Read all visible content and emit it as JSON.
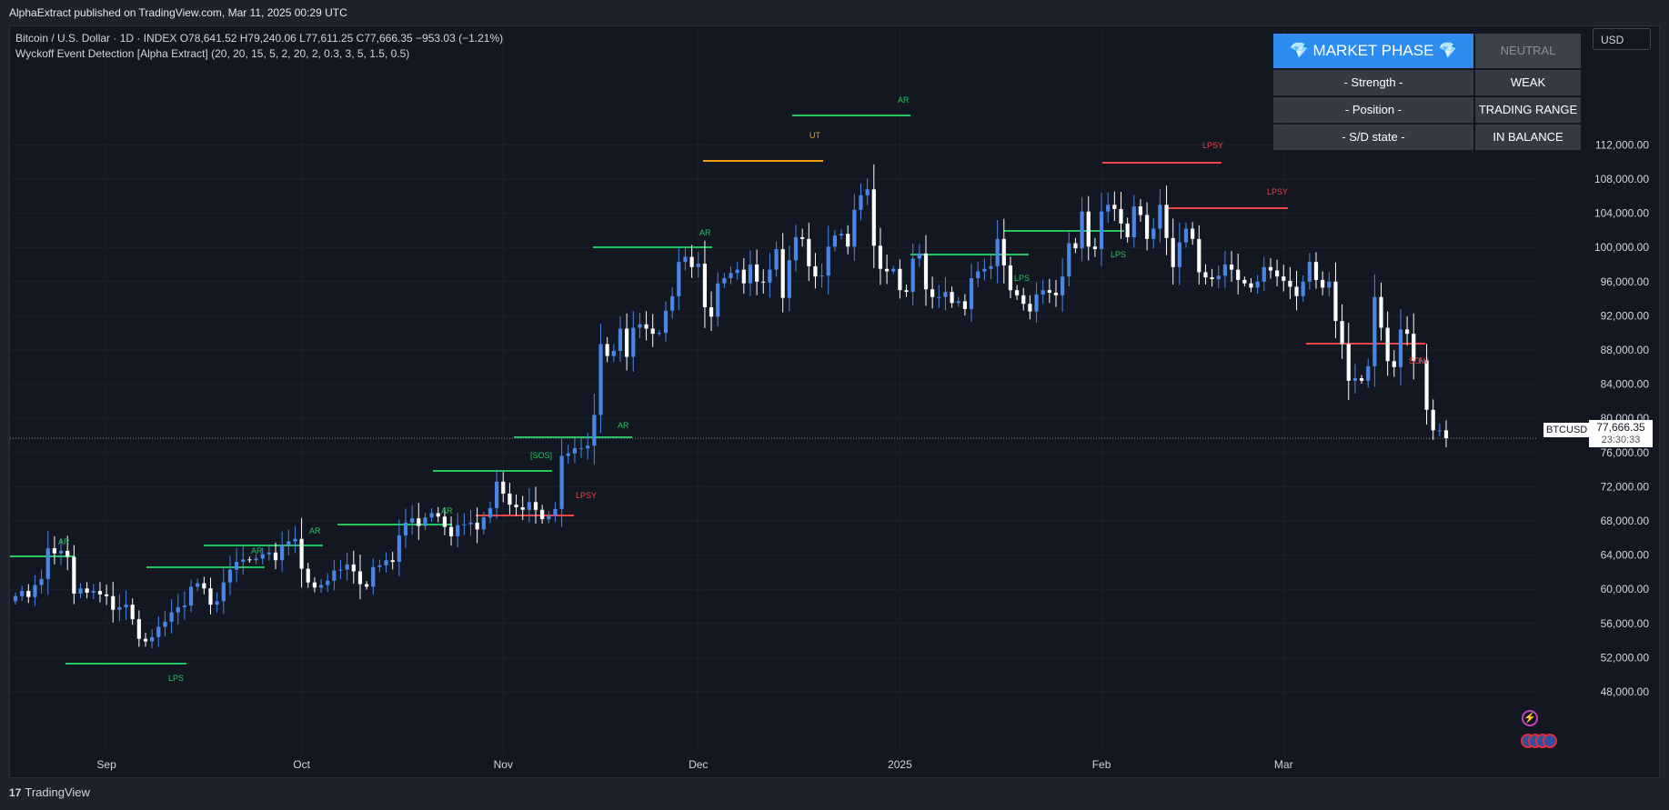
{
  "header": {
    "published": "AlphaExtract published on TradingView.com, Mar 11, 2025 00:29 UTC"
  },
  "legend": {
    "line1": "Bitcoin / U.S. Dollar · 1D · INDEX  O78,641.52  H79,240.06  L77,611.25  C77,666.35  −953.03 (−1.21%)",
    "line2": "Wyckoff Event Detection [Alpha Extract] (20, 20, 15, 5, 2, 20, 2, 0.3, 3, 5, 1.5, 0.5)"
  },
  "currency": "USD",
  "market_phase": {
    "title": "💎 MARKET PHASE 💎",
    "phase": "NEUTRAL",
    "rows": [
      {
        "label": "- Strength -",
        "value": "WEAK"
      },
      {
        "label": "- Position -",
        "value": "TRADING RANGE"
      },
      {
        "label": "- S/D state -",
        "value": "IN BALANCE"
      }
    ]
  },
  "price_label": {
    "symbol": "BTCUSD",
    "price": "77,666.35",
    "countdown": "23:30:33"
  },
  "brand": {
    "logo": "17",
    "name": "TradingView"
  },
  "colors": {
    "up": "#4a86e8",
    "down": "#ffffff",
    "green": "#22c55e",
    "red": "#ef4444",
    "orange": "#f59e0b",
    "panel_head": "#2d8cf0"
  },
  "chart_data": {
    "type": "candlestick",
    "title": "Bitcoin / U.S. Dollar · 1D · INDEX",
    "xlabel": "",
    "ylabel": "USD",
    "ylim": [
      45000,
      115000
    ],
    "y_ticks": [
      48000,
      52000,
      56000,
      60000,
      64000,
      68000,
      72000,
      76000,
      80000,
      84000,
      88000,
      92000,
      96000,
      100000,
      104000,
      108000,
      112000
    ],
    "y_tick_labels": [
      "48,000.00",
      "52,000.00",
      "56,000.00",
      "60,000.00",
      "64,000.00",
      "68,000.00",
      "72,000.00",
      "76,000.00",
      "80,000.00",
      "84,000.00",
      "88,000.00",
      "92,000.00",
      "96,000.00",
      "100,000.00",
      "104,000.00",
      "108,000.00",
      "112,000.00"
    ],
    "x_labels": [
      {
        "text": "Sep",
        "day": 14
      },
      {
        "text": "Oct",
        "day": 44
      },
      {
        "text": "Nov",
        "day": 75
      },
      {
        "text": "Dec",
        "day": 105
      },
      {
        "text": "2025",
        "day": 136
      },
      {
        "text": "Feb",
        "day": 167
      },
      {
        "text": "Mar",
        "day": 195
      }
    ],
    "last_price": 77666.35,
    "closes": [
      59200,
      59800,
      59100,
      60500,
      61200,
      64800,
      64200,
      64500,
      63800,
      59500,
      60100,
      59600,
      59800,
      59400,
      59200,
      57600,
      57900,
      58200,
      56500,
      54200,
      53900,
      54400,
      55600,
      56200,
      57300,
      57900,
      58100,
      60300,
      60700,
      60100,
      58200,
      58600,
      60800,
      62300,
      63200,
      63500,
      63400,
      63600,
      64100,
      64300,
      63400,
      65200,
      65600,
      65900,
      62400,
      60800,
      60200,
      60500,
      61000,
      62200,
      62300,
      62900,
      62100,
      60600,
      60300,
      62600,
      62800,
      63400,
      63200,
      66300,
      67800,
      68300,
      67400,
      68400,
      68900,
      68500,
      67300,
      66200,
      67500,
      67600,
      67800,
      67000,
      68400,
      69500,
      72600,
      71200,
      69900,
      69600,
      69300,
      70200,
      69300,
      68200,
      68600,
      69400,
      75600,
      75900,
      76500,
      76500,
      76800,
      80400,
      88700,
      87300,
      87900,
      90500,
      87200,
      90600,
      91000,
      90500,
      89900,
      90000,
      92600,
      94300,
      98300,
      98900,
      97700,
      98100,
      93000,
      91900,
      95800,
      96400,
      97000,
      97400,
      95800,
      98000,
      96000,
      95900,
      97400,
      99800,
      94100,
      98500,
      101200,
      101000,
      97800,
      96600,
      96700,
      100100,
      101400,
      101600,
      100100,
      104400,
      106100,
      106800,
      100200,
      97500,
      97200,
      97500,
      95000,
      94800,
      98700,
      99300,
      95100,
      94200,
      94200,
      94800,
      93500,
      93700,
      92800,
      96400,
      97200,
      97500,
      97800,
      101000,
      97900,
      95000,
      94400,
      93400,
      92500,
      94500,
      95000,
      94700,
      94400,
      96600,
      100500,
      99900,
      104200,
      100100,
      99800,
      104200,
      105000,
      104500,
      102800,
      101200,
      104800,
      103800,
      101000,
      102200,
      105000,
      101100,
      97700,
      100600,
      102200,
      101000,
      97100,
      96500,
      96300,
      96700,
      98000,
      97400,
      96200,
      95800,
      95300,
      96000,
      97700,
      97300,
      96600,
      96100,
      95400,
      94300,
      96000,
      98300,
      96200,
      95300,
      96000,
      91400,
      88700,
      84400,
      84700,
      84400,
      86100,
      94200,
      90600,
      86700,
      86000,
      90400,
      89900,
      86700,
      86800,
      81000,
      78600,
      78600,
      77666.35
    ]
  }
}
